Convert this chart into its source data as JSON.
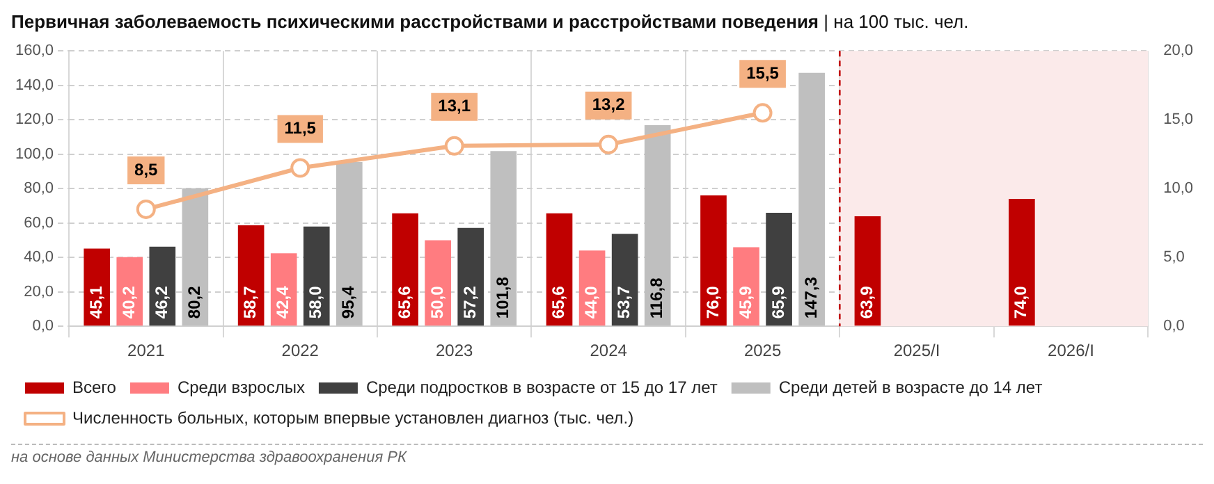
{
  "chart_data": {
    "type": "bar",
    "title": "Первичная заболеваемость психическими расстройствами и расстройствами поведения",
    "subtitle": "| на 100 тыс. чел.",
    "categories": [
      "2021",
      "2022",
      "2023",
      "2024",
      "2025",
      "2025/I",
      "2026/I"
    ],
    "series": [
      {
        "name": "Всего",
        "color": "#c00000",
        "values": [
          45.1,
          58.7,
          65.6,
          65.6,
          76.0,
          63.9,
          74.0
        ],
        "value_labels": [
          "45,1",
          "58,7",
          "65,6",
          "65,6",
          "76,0",
          "63,9",
          "74,0"
        ]
      },
      {
        "name": "Среди взрослых",
        "color": "#ff7c80",
        "values": [
          40.2,
          42.4,
          50.0,
          44.0,
          45.9,
          null,
          null
        ],
        "value_labels": [
          "40,2",
          "42,4",
          "50,0",
          "44,0",
          "45,9",
          null,
          null
        ]
      },
      {
        "name": "Среди подростков в возрасте от 15 до 17 лет",
        "color": "#404040",
        "values": [
          46.2,
          58.0,
          57.2,
          53.7,
          65.9,
          null,
          null
        ],
        "value_labels": [
          "46,2",
          "58,0",
          "57,2",
          "53,7",
          "65,9",
          null,
          null
        ]
      },
      {
        "name": "Среди детей в возрасте до 14 лет",
        "color": "#bfbfbf",
        "values": [
          80.2,
          95.4,
          101.8,
          116.8,
          147.3,
          null,
          null
        ],
        "value_labels": [
          "80,2",
          "95,4",
          "101,8",
          "116,8",
          "147,3",
          null,
          null
        ]
      },
      {
        "name": "Численность больных, которым впервые установлен диагноз (тыс. чел.)",
        "type": "line",
        "axis": "y2",
        "color": "#f4b183",
        "marker": "circle",
        "values": [
          8.5,
          11.5,
          13.1,
          13.2,
          15.5,
          null,
          null
        ],
        "value_labels": [
          "8,5",
          "11,5",
          "13,1",
          "13,2",
          "15,5",
          null,
          null
        ]
      }
    ],
    "ylim": [
      0,
      160
    ],
    "yticks": [
      {
        "value": 0,
        "label": "0,0"
      },
      {
        "value": 20,
        "label": "20,0"
      },
      {
        "value": 40,
        "label": "40,0"
      },
      {
        "value": 60,
        "label": "60,0"
      },
      {
        "value": 80,
        "label": "80,0"
      },
      {
        "value": 100,
        "label": "100,0"
      },
      {
        "value": 120,
        "label": "120,0"
      },
      {
        "value": 140,
        "label": "140,0"
      },
      {
        "value": 160,
        "label": "160,0"
      }
    ],
    "y2lim": [
      0,
      20
    ],
    "y2ticks": [
      {
        "value": 0,
        "label": "0,0"
      },
      {
        "value": 5,
        "label": "5,0"
      },
      {
        "value": 10,
        "label": "10,0"
      },
      {
        "value": 15,
        "label": "15,0"
      },
      {
        "value": 20,
        "label": "20,0"
      }
    ],
    "bands": [
      {
        "axis": "x",
        "from": "2025/I",
        "to": "2026/I",
        "color": "#fbeaea"
      }
    ],
    "ref_lines": [
      {
        "axis": "x",
        "value": "2025/I",
        "color": "#c00000",
        "line_style": "dashed"
      }
    ],
    "grid": true,
    "legend": "bottom",
    "annotations": [
      "на основе данных Министерства здравоохранения РК"
    ]
  }
}
